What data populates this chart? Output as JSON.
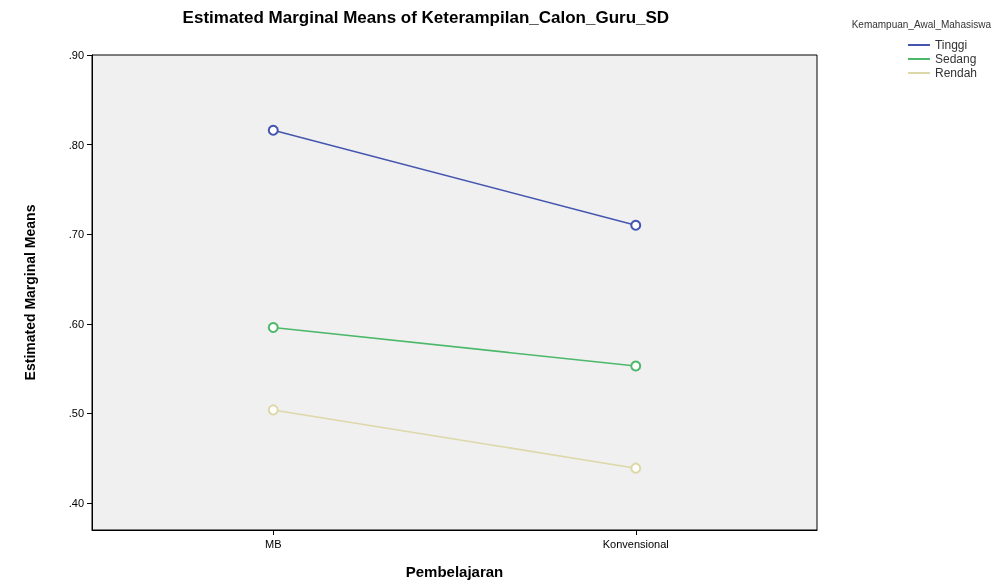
{
  "chart_data": {
    "type": "line",
    "title": "Estimated Marginal Means of Keterampilan_Calon_Guru_SD",
    "xlabel": "Pembelajaran",
    "ylabel": "Estimated Marginal Means",
    "legend_title": "Kemampuan_Awal_Mahasiswa",
    "categories": [
      "MB",
      "Konvensional"
    ],
    "series": [
      {
        "name": "Tinggi",
        "color": "#4455b0",
        "values": [
          0.816,
          0.71
        ]
      },
      {
        "name": "Sedang",
        "color": "#4cb86a",
        "values": [
          0.596,
          0.553
        ]
      },
      {
        "name": "Rendah",
        "color": "#ddd8a8",
        "values": [
          0.504,
          0.439
        ]
      }
    ],
    "ylim": [
      0.37,
      0.9
    ],
    "yticks": [
      {
        "value": 0.4,
        "label": ".40"
      },
      {
        "value": 0.5,
        "label": ".50"
      },
      {
        "value": 0.6,
        "label": ".60"
      },
      {
        "value": 0.7,
        "label": ".70"
      },
      {
        "value": 0.8,
        "label": ".80"
      },
      {
        "value": 0.9,
        "label": ".90"
      }
    ],
    "grid": false,
    "legend": "top right",
    "marker": "circle",
    "line_style": "solid"
  }
}
